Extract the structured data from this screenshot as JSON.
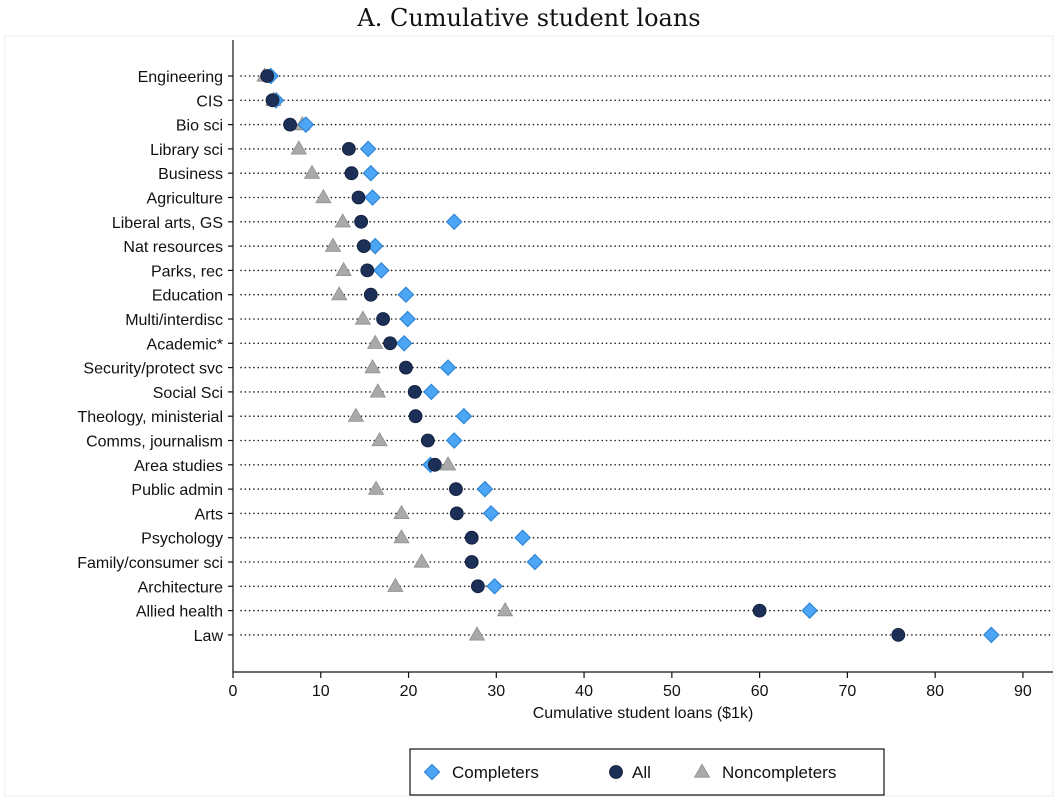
{
  "chart_data": {
    "type": "scatter",
    "title": "A. Cumulative student loans",
    "xlabel": "Cumulative student loans ($1k)",
    "ylabel": "",
    "xlim": [
      0,
      92
    ],
    "xticks": [
      0,
      10,
      20,
      30,
      40,
      50,
      60,
      70,
      80,
      90
    ],
    "grid": false,
    "legend_position": "bottom",
    "categories": [
      "Engineering",
      "CIS",
      "Bio sci",
      "Library sci",
      "Business",
      "Agriculture",
      "Liberal arts, GS",
      "Nat resources",
      "Parks, rec",
      "Education",
      "Multi/interdisc",
      "Academic*",
      "Security/protect svc",
      "Social Sci",
      "Theology, ministerial",
      "Comms, journalism",
      "Area studies",
      "Public admin",
      "Arts",
      "Psychology",
      "Family/consumer sci",
      "Architecture",
      "Allied health",
      "Law"
    ],
    "series": [
      {
        "name": "Completers",
        "marker": "diamond",
        "color": "#4da6f5",
        "values": [
          4.3,
          4.9,
          8.3,
          15.4,
          15.7,
          15.9,
          25.2,
          16.2,
          16.9,
          19.7,
          19.9,
          19.5,
          24.5,
          22.6,
          26.3,
          25.2,
          22.5,
          28.7,
          29.4,
          33.0,
          34.4,
          29.8,
          65.7,
          86.4
        ]
      },
      {
        "name": "All",
        "marker": "circle",
        "color": "#1c2f57",
        "values": [
          3.9,
          4.5,
          6.5,
          13.2,
          13.5,
          14.3,
          14.6,
          14.9,
          15.3,
          15.7,
          17.1,
          17.9,
          19.7,
          20.7,
          20.8,
          22.2,
          23.0,
          25.4,
          25.5,
          27.2,
          27.2,
          27.9,
          60.0,
          75.8
        ]
      },
      {
        "name": "Noncompleters",
        "marker": "triangle",
        "color": "#a9a9a9",
        "values": [
          3.6,
          4.6,
          7.9,
          7.5,
          9.0,
          10.3,
          12.5,
          11.4,
          12.6,
          12.1,
          14.8,
          16.2,
          15.9,
          16.5,
          14.0,
          16.7,
          24.5,
          16.3,
          19.2,
          19.2,
          21.5,
          18.5,
          31.0,
          27.8
        ]
      }
    ]
  }
}
